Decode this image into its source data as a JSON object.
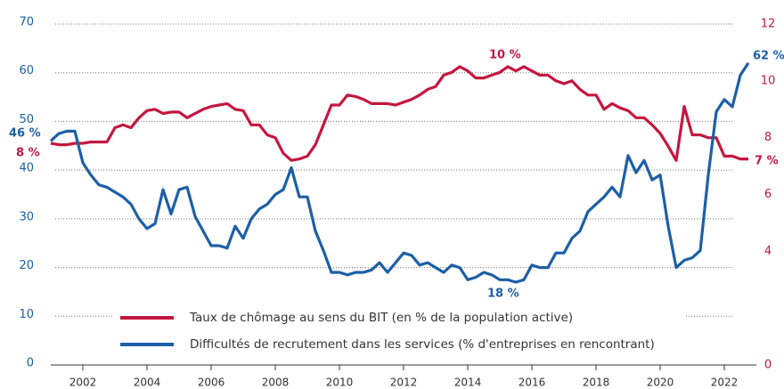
{
  "chart_data": {
    "type": "line",
    "x": [
      2001,
      2001.25,
      2001.5,
      2001.75,
      2002,
      2002.25,
      2002.5,
      2002.75,
      2003,
      2003.25,
      2003.5,
      2003.75,
      2004,
      2004.25,
      2004.5,
      2004.75,
      2005,
      2005.25,
      2005.5,
      2005.75,
      2006,
      2006.25,
      2006.5,
      2006.75,
      2007,
      2007.25,
      2007.5,
      2007.75,
      2008,
      2008.25,
      2008.5,
      2008.75,
      2009,
      2009.25,
      2009.5,
      2009.75,
      2010,
      2010.25,
      2010.5,
      2010.75,
      2011,
      2011.25,
      2011.5,
      2011.75,
      2012,
      2012.25,
      2012.5,
      2012.75,
      2013,
      2013.25,
      2013.5,
      2013.75,
      2014,
      2014.25,
      2014.5,
      2014.75,
      2015,
      2015.25,
      2015.5,
      2015.75,
      2016,
      2016.25,
      2016.5,
      2016.75,
      2017,
      2017.25,
      2017.5,
      2017.75,
      2018,
      2018.25,
      2018.5,
      2018.75,
      2019,
      2019.25,
      2019.5,
      2019.75,
      2020,
      2020.25,
      2020.5,
      2020.75,
      2021,
      2021.25,
      2021.5,
      2021.75,
      2022,
      2022.25,
      2022.5,
      2022.75
    ],
    "series": [
      {
        "name": "Taux de chômage au sens du BIT (en % de la population active)",
        "color": "#c4173f",
        "axis": "y2",
        "values": [
          7.8,
          7.75,
          7.75,
          7.8,
          7.8,
          7.85,
          7.85,
          7.85,
          8.35,
          8.45,
          8.35,
          8.7,
          8.95,
          9.0,
          8.85,
          8.9,
          8.9,
          8.7,
          8.85,
          9.0,
          9.1,
          9.15,
          9.2,
          9.0,
          8.95,
          8.45,
          8.45,
          8.1,
          8.0,
          7.45,
          7.2,
          7.25,
          7.35,
          7.75,
          8.45,
          9.15,
          9.15,
          9.5,
          9.45,
          9.35,
          9.2,
          9.2,
          9.2,
          9.15,
          9.25,
          9.35,
          9.5,
          9.7,
          9.8,
          10.2,
          10.3,
          10.5,
          10.35,
          10.1,
          10.1,
          10.2,
          10.3,
          10.5,
          10.35,
          10.5,
          10.35,
          10.2,
          10.2,
          10.0,
          9.9,
          10.0,
          9.7,
          9.5,
          9.5,
          9.0,
          9.2,
          9.05,
          8.95,
          8.7,
          8.7,
          8.45,
          8.15,
          7.7,
          7.2,
          9.1,
          8.1,
          8.1,
          8.0,
          8.0,
          7.35,
          7.35,
          7.25,
          7.25
        ]
      },
      {
        "name": "Difficultés de recrutement dans les services (% d'entreprises en rencontrant)",
        "color": "#1d5fa6",
        "values": [
          46,
          47.5,
          48,
          48,
          41.5,
          39,
          37,
          36.5,
          35.5,
          34.5,
          33,
          30,
          28,
          29,
          36,
          31,
          36,
          36.5,
          30.5,
          27.5,
          24.5,
          24.5,
          24,
          28.5,
          26,
          30,
          32,
          33,
          35,
          36,
          40.5,
          34.5,
          34.5,
          27.5,
          23.5,
          19,
          19,
          18.5,
          19,
          19,
          19.5,
          21,
          19,
          21,
          23,
          22.5,
          20.5,
          21,
          20,
          19,
          20.5,
          20,
          17.5,
          18,
          19,
          18.5,
          17.5,
          17.5,
          17,
          17.5,
          20.5,
          20,
          20,
          23,
          23,
          26,
          27.5,
          31.5,
          33,
          34.5,
          36.5,
          34.5,
          43,
          39.5,
          42,
          38,
          39,
          28.5,
          20,
          21.5,
          22,
          23.5,
          39,
          52,
          54.5,
          53,
          59.5,
          62
        ]
      }
    ],
    "annotations": [
      "46 %",
      "8 %",
      "10 %",
      "18 %",
      "62 %",
      "7 %"
    ],
    "xlim": [
      2001,
      2023
    ],
    "xticks": [
      2002,
      2004,
      2006,
      2008,
      2010,
      2012,
      2014,
      2016,
      2018,
      2020,
      2022
    ],
    "ylim": [
      0,
      70
    ],
    "yticks": [
      0,
      10,
      20,
      30,
      40,
      50,
      60,
      70
    ],
    "y2lim": [
      0,
      12
    ],
    "y2ticks": [
      0,
      4,
      6,
      8,
      10,
      12
    ],
    "grid": true
  }
}
